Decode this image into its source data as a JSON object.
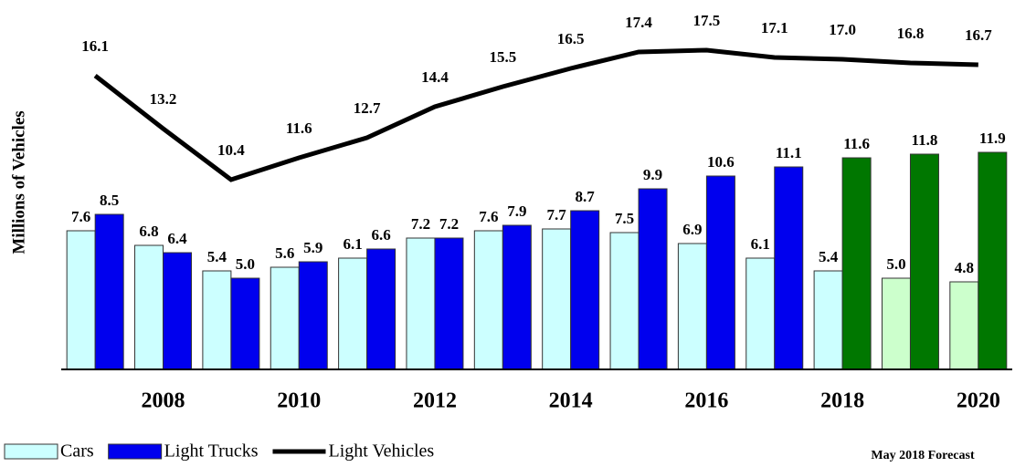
{
  "chart_data": {
    "type": "bar-line",
    "y_label": "Millions of Vehicles",
    "annotation": "May 2018 Forecast",
    "categories": [
      null,
      "2008",
      null,
      "2010",
      null,
      "2012",
      null,
      "2014",
      null,
      "2016",
      null,
      "2018",
      null,
      "2020"
    ],
    "ylim": [
      0,
      20
    ],
    "series": [
      {
        "name": "Cars",
        "kind": "bar",
        "color": "#ccffff",
        "colors": [
          "#ccffff",
          "#ccffff",
          "#ccffff",
          "#ccffff",
          "#ccffff",
          "#ccffff",
          "#ccffff",
          "#ccffff",
          "#ccffff",
          "#ccffff",
          "#ccffff",
          "#ccffff",
          "#ccffcc",
          "#ccffcc"
        ],
        "values": [
          7.6,
          6.8,
          5.4,
          5.6,
          6.1,
          7.2,
          7.6,
          7.7,
          7.5,
          6.9,
          6.1,
          5.4,
          5.0,
          4.8
        ],
        "value_labels": [
          "7.6",
          "6.8",
          "5.4",
          "5.6",
          "6.1",
          "7.2",
          "7.6",
          "7.7",
          "7.5",
          "6.9",
          "6.1",
          "5.4",
          "5.0",
          "4.8"
        ]
      },
      {
        "name": "Light Trucks",
        "kind": "bar",
        "color": "#0000ee",
        "colors": [
          "#0000ee",
          "#0000ee",
          "#0000ee",
          "#0000ee",
          "#0000ee",
          "#0000ee",
          "#0000ee",
          "#0000ee",
          "#0000ee",
          "#0000ee",
          "#0000ee",
          "#007700",
          "#007700",
          "#007700"
        ],
        "values": [
          8.5,
          6.4,
          5.0,
          5.9,
          6.6,
          7.2,
          7.9,
          8.7,
          9.9,
          10.6,
          11.1,
          11.6,
          11.8,
          11.9
        ],
        "value_labels": [
          "8.5",
          "6.4",
          "5.0",
          "5.9",
          "6.6",
          "7.2",
          "7.9",
          "8.7",
          "9.9",
          "10.6",
          "11.1",
          "11.6",
          "11.8",
          "11.9"
        ]
      },
      {
        "name": "Light Vehicles",
        "kind": "line",
        "color": "#000000",
        "values": [
          16.1,
          13.2,
          10.4,
          11.6,
          12.7,
          14.4,
          15.5,
          16.5,
          17.4,
          17.5,
          17.1,
          17.0,
          16.8,
          16.7
        ],
        "value_labels": [
          "16.1",
          "13.2",
          "10.4",
          "11.6",
          "12.7",
          "14.4",
          "15.5",
          "16.5",
          "17.4",
          "17.5",
          "17.1",
          "17.0",
          "16.8",
          "16.7"
        ]
      }
    ]
  }
}
